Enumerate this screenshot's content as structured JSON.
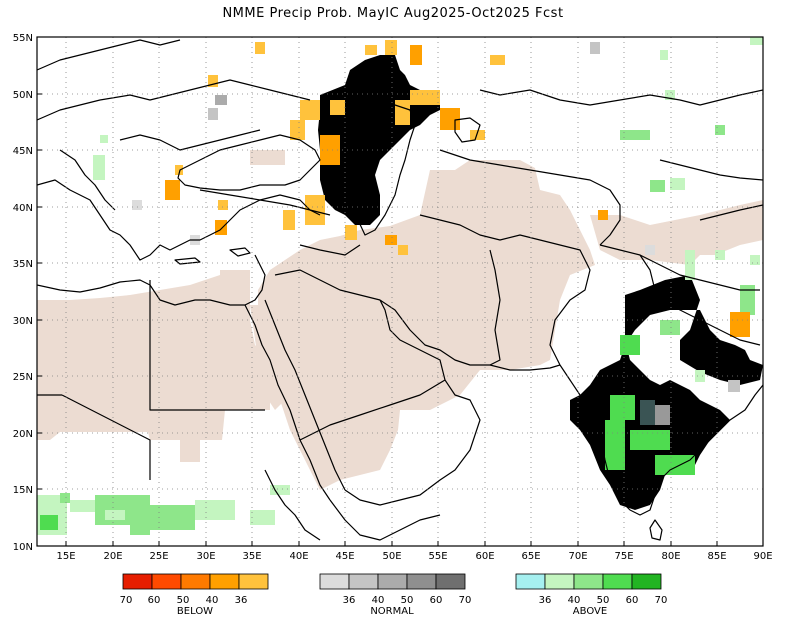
{
  "title": "NMME Precip Prob. MayIC  Aug2025-Oct2025 Fcst",
  "axes": {
    "lon_ticks": [
      "15E",
      "20E",
      "25E",
      "30E",
      "35E",
      "40E",
      "45E",
      "50E",
      "55E",
      "60E",
      "65E",
      "70E",
      "75E",
      "80E",
      "85E",
      "90E"
    ],
    "lat_ticks": [
      "10N",
      "15N",
      "20N",
      "25N",
      "30N",
      "35N",
      "40N",
      "45N",
      "50N",
      "55N"
    ],
    "lon_range": [
      12,
      90
    ],
    "lat_range": [
      10,
      55
    ],
    "grid": "dotted"
  },
  "colors": {
    "below": [
      "#e61e00",
      "#ff4a00",
      "#ff7a00",
      "#ffa000",
      "#ffc23c"
    ],
    "normal": [
      "#dcdcdc",
      "#c4c4c4",
      "#ababab",
      "#8f8f8f",
      "#6f6f6f"
    ],
    "above": [
      "#a6f0f0",
      "#c4f5c0",
      "#8ee68a",
      "#4fdc50",
      "#22b422"
    ],
    "dry_season_mask": "#ecdcd2",
    "coast": "#000000"
  },
  "legend": {
    "below": {
      "title": "BELOW",
      "ticks": [
        "70",
        "60",
        "50",
        "40",
        "36"
      ]
    },
    "normal": {
      "title": "NORMAL",
      "ticks": [
        "36",
        "40",
        "50",
        "60",
        "70"
      ]
    },
    "above": {
      "title": "ABOVE",
      "ticks": [
        "36",
        "40",
        "50",
        "60",
        "70"
      ]
    }
  }
}
